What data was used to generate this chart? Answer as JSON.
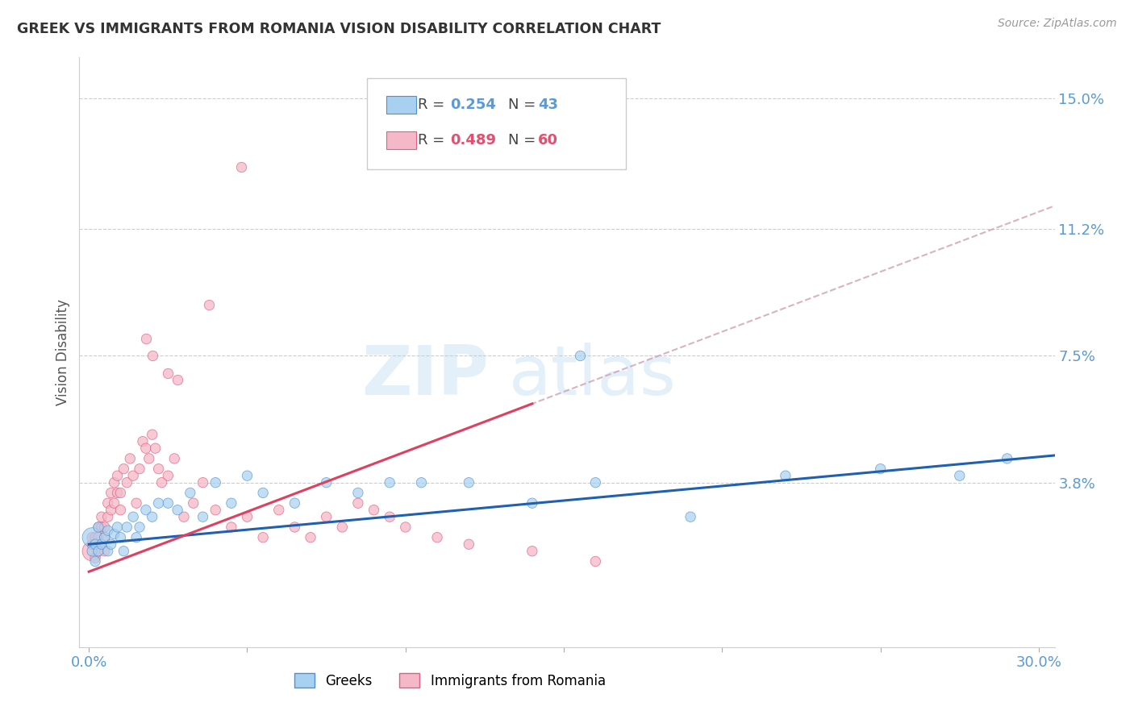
{
  "title": "GREEK VS IMMIGRANTS FROM ROMANIA VISION DISABILITY CORRELATION CHART",
  "source": "Source: ZipAtlas.com",
  "ylabel": "Vision Disability",
  "watermark_zip": "ZIP",
  "watermark_atlas": "atlas",
  "xlim": [
    -0.003,
    0.305
  ],
  "ylim": [
    -0.01,
    0.162
  ],
  "yticks_right": [
    0.038,
    0.075,
    0.112,
    0.15
  ],
  "yticks_right_labels": [
    "3.8%",
    "7.5%",
    "11.2%",
    "15.0%"
  ],
  "legend_blue_R": "0.254",
  "legend_blue_N": "43",
  "legend_pink_R": "0.489",
  "legend_pink_N": "60",
  "blue_scatter_color": "#a8d0f0",
  "blue_edge_color": "#5090d0",
  "pink_scatter_color": "#f5b8c8",
  "pink_edge_color": "#e06080",
  "blue_line_color": "#2060b0",
  "pink_line_color": "#e04060",
  "dashed_line_color": "#d0a0b0",
  "greeks_x": [
    0.001,
    0.001,
    0.002,
    0.002,
    0.003,
    0.003,
    0.004,
    0.005,
    0.006,
    0.006,
    0.007,
    0.008,
    0.009,
    0.01,
    0.011,
    0.012,
    0.014,
    0.015,
    0.016,
    0.018,
    0.02,
    0.022,
    0.025,
    0.028,
    0.032,
    0.036,
    0.04,
    0.045,
    0.05,
    0.055,
    0.065,
    0.075,
    0.085,
    0.095,
    0.105,
    0.12,
    0.14,
    0.16,
    0.19,
    0.22,
    0.25,
    0.275,
    0.29
  ],
  "greeks_y": [
    0.022,
    0.018,
    0.02,
    0.015,
    0.025,
    0.018,
    0.02,
    0.022,
    0.018,
    0.024,
    0.02,
    0.023,
    0.025,
    0.022,
    0.018,
    0.025,
    0.028,
    0.022,
    0.025,
    0.03,
    0.028,
    0.032,
    0.032,
    0.03,
    0.035,
    0.028,
    0.038,
    0.032,
    0.04,
    0.035,
    0.032,
    0.038,
    0.035,
    0.038,
    0.038,
    0.038,
    0.032,
    0.038,
    0.028,
    0.04,
    0.042,
    0.04,
    0.045
  ],
  "greeks_size": [
    300,
    80,
    80,
    80,
    80,
    80,
    80,
    80,
    80,
    80,
    80,
    80,
    80,
    80,
    80,
    80,
    80,
    80,
    80,
    80,
    80,
    80,
    80,
    80,
    80,
    80,
    80,
    80,
    80,
    80,
    80,
    80,
    80,
    80,
    80,
    80,
    80,
    80,
    80,
    80,
    80,
    80,
    80
  ],
  "romania_x": [
    0.001,
    0.001,
    0.001,
    0.002,
    0.002,
    0.002,
    0.003,
    0.003,
    0.003,
    0.004,
    0.004,
    0.004,
    0.005,
    0.005,
    0.005,
    0.006,
    0.006,
    0.007,
    0.007,
    0.008,
    0.008,
    0.009,
    0.009,
    0.01,
    0.01,
    0.011,
    0.012,
    0.013,
    0.014,
    0.015,
    0.016,
    0.017,
    0.018,
    0.019,
    0.02,
    0.021,
    0.022,
    0.023,
    0.025,
    0.027,
    0.03,
    0.033,
    0.036,
    0.04,
    0.045,
    0.05,
    0.055,
    0.06,
    0.065,
    0.07,
    0.075,
    0.08,
    0.085,
    0.09,
    0.095,
    0.1,
    0.11,
    0.12,
    0.14,
    0.16
  ],
  "romania_y": [
    0.018,
    0.02,
    0.022,
    0.016,
    0.02,
    0.022,
    0.018,
    0.022,
    0.025,
    0.02,
    0.025,
    0.028,
    0.022,
    0.025,
    0.018,
    0.028,
    0.032,
    0.03,
    0.035,
    0.032,
    0.038,
    0.035,
    0.04,
    0.03,
    0.035,
    0.042,
    0.038,
    0.045,
    0.04,
    0.032,
    0.042,
    0.05,
    0.048,
    0.045,
    0.052,
    0.048,
    0.042,
    0.038,
    0.04,
    0.045,
    0.028,
    0.032,
    0.038,
    0.03,
    0.025,
    0.028,
    0.022,
    0.03,
    0.025,
    0.022,
    0.028,
    0.025,
    0.032,
    0.03,
    0.028,
    0.025,
    0.022,
    0.02,
    0.018,
    0.015
  ],
  "romania_size": [
    300,
    80,
    80,
    80,
    80,
    80,
    80,
    80,
    80,
    80,
    80,
    80,
    80,
    80,
    80,
    80,
    80,
    80,
    80,
    80,
    80,
    80,
    80,
    80,
    80,
    80,
    80,
    80,
    80,
    80,
    80,
    80,
    80,
    80,
    80,
    80,
    80,
    80,
    80,
    80,
    80,
    80,
    80,
    80,
    80,
    80,
    80,
    80,
    80,
    80,
    80,
    80,
    80,
    80,
    80,
    80,
    80,
    80,
    80,
    80
  ],
  "extra_pink_high": [
    [
      0.038,
      0.09
    ],
    [
      0.018,
      0.08
    ],
    [
      0.02,
      0.075
    ],
    [
      0.025,
      0.07
    ],
    [
      0.028,
      0.068
    ]
  ],
  "extra_pink_outlier": [
    [
      0.048,
      0.13
    ]
  ],
  "extra_blue_high": [
    [
      0.155,
      0.075
    ]
  ],
  "background_color": "#ffffff",
  "grid_color": "#cccccc",
  "blue_trendline_intercept": 0.02,
  "blue_trendline_slope": 0.085,
  "pink_trendline_intercept": 0.012,
  "pink_trendline_slope": 0.35
}
